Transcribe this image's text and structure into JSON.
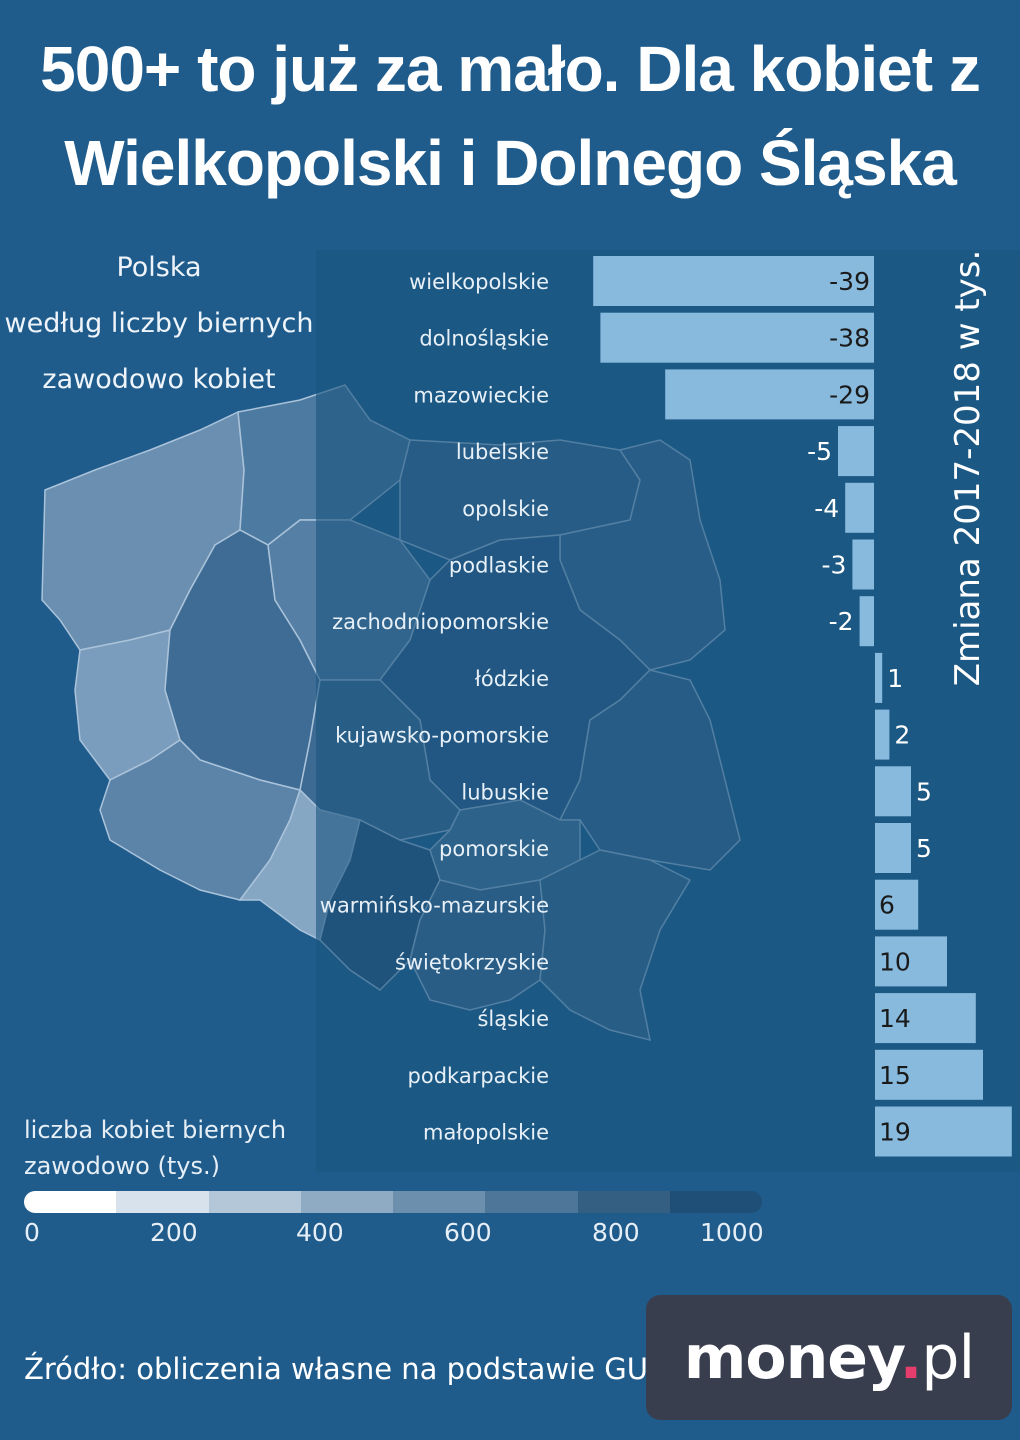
{
  "title": {
    "line1": "500+ to już za mało. Dla kobiet z",
    "line2": "Wielkopolski i Dolnego Śląska"
  },
  "map_legend": {
    "line1": "Polska",
    "line2": "według liczby biernych",
    "line3": "zawodowo kobiet"
  },
  "scale": {
    "title_line1": "liczba kobiet biernych",
    "title_line2": "zawodowo (tys.)",
    "ticks": [
      "0",
      "200",
      "400",
      "600",
      "800",
      "1000"
    ],
    "colors": [
      "#ffffff",
      "#d8e2ec",
      "#b3c7d8",
      "#8fabc3",
      "#6c8fae",
      "#4e7698",
      "#345f83",
      "#1f4f76"
    ]
  },
  "chart_data": {
    "type": "bar",
    "orientation": "horizontal",
    "ylabel": "Zmiana 2017-2018 w tys.",
    "categories": [
      "wielkopolskie",
      "dolnośląskie",
      "mazowieckie",
      "lubelskie",
      "opolskie",
      "podlaskie",
      "zachodniopomorskie",
      "łódzkie",
      "kujawsko-pomorskie",
      "lubuskie",
      "pomorskie",
      "warmińsko-mazurskie",
      "świętokrzyskie",
      "śląskie",
      "podkarpackie",
      "małopolskie"
    ],
    "values": [
      -39,
      -38,
      -29,
      -5,
      -4,
      -3,
      -2,
      1,
      2,
      5,
      5,
      6,
      10,
      14,
      15,
      19
    ],
    "labels": [
      "-39",
      "-38",
      "-29",
      "-5",
      "-4",
      "-3",
      "-2",
      "1",
      "2",
      "5",
      "5",
      "6",
      "10",
      "14",
      "15",
      "19"
    ],
    "bar_color": "#88bade",
    "panel_color": "#1c5580"
  },
  "source": "Źródło: obliczenia własne na podstawie GUS",
  "logo": {
    "main": "money",
    "dot": ".",
    "suffix": "pl"
  }
}
